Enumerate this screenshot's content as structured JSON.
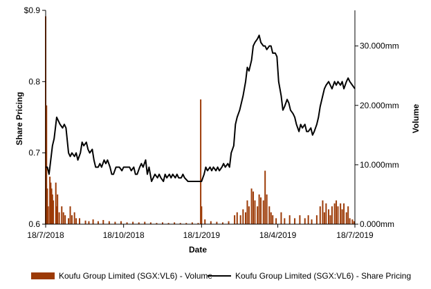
{
  "chart_data": {
    "type": "bar+line",
    "title": "",
    "xlabel": "Date",
    "ylabel_left": "Share Pricing",
    "ylabel_right": "Volume",
    "x_ticks": [
      "18/7/2018",
      "18/10/2018",
      "18/1/2019",
      "18/4/2019",
      "18/7/2019"
    ],
    "y_left_ticks": [
      "$0.9",
      "0.8",
      "0.7",
      "0.6"
    ],
    "y_left_tick_values": [
      0.9,
      0.8,
      0.7,
      0.6
    ],
    "ylim_left": [
      0.6,
      0.9
    ],
    "y_right_ticks": [
      "30.000mm",
      "20.000mm",
      "10.000mm",
      "0.000mm"
    ],
    "y_right_tick_values": [
      30,
      20,
      10,
      0
    ],
    "ylim_right": [
      0,
      36
    ],
    "grid": false,
    "legend_position": "bottom",
    "colors": {
      "volume": "#9c3a06",
      "price": "#000000"
    },
    "series": [
      {
        "name": "Koufu Group Limited (SGX:VL6) - Share Pricing",
        "type": "line",
        "axis": "left",
        "points": [
          [
            "2018-07-18",
            0.68
          ],
          [
            "2018-07-20",
            0.68
          ],
          [
            "2018-07-22",
            0.67
          ],
          [
            "2018-07-24",
            0.69
          ],
          [
            "2018-07-26",
            0.71
          ],
          [
            "2018-07-28",
            0.72
          ],
          [
            "2018-07-31",
            0.75
          ],
          [
            "2018-08-02",
            0.745
          ],
          [
            "2018-08-04",
            0.74
          ],
          [
            "2018-08-07",
            0.735
          ],
          [
            "2018-08-09",
            0.74
          ],
          [
            "2018-08-11",
            0.735
          ],
          [
            "2018-08-14",
            0.7
          ],
          [
            "2018-08-16",
            0.695
          ],
          [
            "2018-08-18",
            0.7
          ],
          [
            "2018-08-21",
            0.695
          ],
          [
            "2018-08-23",
            0.7
          ],
          [
            "2018-08-25",
            0.69
          ],
          [
            "2018-08-28",
            0.7
          ],
          [
            "2018-08-30",
            0.715
          ],
          [
            "2018-09-01",
            0.71
          ],
          [
            "2018-09-04",
            0.715
          ],
          [
            "2018-09-06",
            0.705
          ],
          [
            "2018-09-08",
            0.7
          ],
          [
            "2018-09-11",
            0.705
          ],
          [
            "2018-09-13",
            0.69
          ],
          [
            "2018-09-15",
            0.68
          ],
          [
            "2018-09-18",
            0.68
          ],
          [
            "2018-09-20",
            0.685
          ],
          [
            "2018-09-22",
            0.68
          ],
          [
            "2018-09-25",
            0.69
          ],
          [
            "2018-09-27",
            0.685
          ],
          [
            "2018-09-29",
            0.69
          ],
          [
            "2018-10-02",
            0.68
          ],
          [
            "2018-10-04",
            0.67
          ],
          [
            "2018-10-06",
            0.67
          ],
          [
            "2018-10-09",
            0.68
          ],
          [
            "2018-10-11",
            0.68
          ],
          [
            "2018-10-13",
            0.68
          ],
          [
            "2018-10-16",
            0.675
          ],
          [
            "2018-10-18",
            0.68
          ],
          [
            "2018-10-20",
            0.68
          ],
          [
            "2018-10-23",
            0.68
          ],
          [
            "2018-10-25",
            0.68
          ],
          [
            "2018-10-27",
            0.675
          ],
          [
            "2018-10-30",
            0.68
          ],
          [
            "2018-11-01",
            0.67
          ],
          [
            "2018-11-03",
            0.67
          ],
          [
            "2018-11-06",
            0.68
          ],
          [
            "2018-11-08",
            0.685
          ],
          [
            "2018-11-10",
            0.68
          ],
          [
            "2018-11-13",
            0.69
          ],
          [
            "2018-11-15",
            0.67
          ],
          [
            "2018-11-17",
            0.68
          ],
          [
            "2018-11-20",
            0.66
          ],
          [
            "2018-11-22",
            0.665
          ],
          [
            "2018-11-24",
            0.67
          ],
          [
            "2018-11-27",
            0.665
          ],
          [
            "2018-11-29",
            0.67
          ],
          [
            "2018-12-01",
            0.665
          ],
          [
            "2018-12-04",
            0.66
          ],
          [
            "2018-12-06",
            0.67
          ],
          [
            "2018-12-08",
            0.665
          ],
          [
            "2018-12-11",
            0.67
          ],
          [
            "2018-12-13",
            0.665
          ],
          [
            "2018-12-15",
            0.67
          ],
          [
            "2018-12-18",
            0.665
          ],
          [
            "2018-12-20",
            0.67
          ],
          [
            "2018-12-22",
            0.665
          ],
          [
            "2018-12-25",
            0.665
          ],
          [
            "2018-12-27",
            0.67
          ],
          [
            "2018-12-29",
            0.665
          ],
          [
            "2019-01-02",
            0.66
          ],
          [
            "2019-01-05",
            0.66
          ],
          [
            "2019-01-08",
            0.66
          ],
          [
            "2019-01-11",
            0.66
          ],
          [
            "2019-01-14",
            0.66
          ],
          [
            "2019-01-16",
            0.66
          ],
          [
            "2019-01-18",
            0.66
          ],
          [
            "2019-01-21",
            0.67
          ],
          [
            "2019-01-23",
            0.68
          ],
          [
            "2019-01-25",
            0.675
          ],
          [
            "2019-01-28",
            0.68
          ],
          [
            "2019-01-30",
            0.675
          ],
          [
            "2019-02-01",
            0.68
          ],
          [
            "2019-02-04",
            0.675
          ],
          [
            "2019-02-06",
            0.68
          ],
          [
            "2019-02-08",
            0.675
          ],
          [
            "2019-02-11",
            0.68
          ],
          [
            "2019-02-13",
            0.685
          ],
          [
            "2019-02-15",
            0.68
          ],
          [
            "2019-02-18",
            0.685
          ],
          [
            "2019-02-20",
            0.68
          ],
          [
            "2019-02-22",
            0.7
          ],
          [
            "2019-02-25",
            0.71
          ],
          [
            "2019-02-27",
            0.74
          ],
          [
            "2019-03-01",
            0.75
          ],
          [
            "2019-03-04",
            0.76
          ],
          [
            "2019-03-06",
            0.77
          ],
          [
            "2019-03-08",
            0.78
          ],
          [
            "2019-03-11",
            0.8
          ],
          [
            "2019-03-13",
            0.82
          ],
          [
            "2019-03-15",
            0.815
          ],
          [
            "2019-03-18",
            0.83
          ],
          [
            "2019-03-20",
            0.85
          ],
          [
            "2019-03-22",
            0.855
          ],
          [
            "2019-03-25",
            0.86
          ],
          [
            "2019-03-27",
            0.865
          ],
          [
            "2019-03-29",
            0.855
          ],
          [
            "2019-04-01",
            0.85
          ],
          [
            "2019-04-03",
            0.85
          ],
          [
            "2019-04-05",
            0.845
          ],
          [
            "2019-04-08",
            0.85
          ],
          [
            "2019-04-10",
            0.85
          ],
          [
            "2019-04-12",
            0.84
          ],
          [
            "2019-04-15",
            0.84
          ],
          [
            "2019-04-17",
            0.835
          ],
          [
            "2019-04-19",
            0.8
          ],
          [
            "2019-04-22",
            0.78
          ],
          [
            "2019-04-24",
            0.76
          ],
          [
            "2019-04-26",
            0.765
          ],
          [
            "2019-04-29",
            0.775
          ],
          [
            "2019-05-01",
            0.77
          ],
          [
            "2019-05-03",
            0.76
          ],
          [
            "2019-05-06",
            0.755
          ],
          [
            "2019-05-08",
            0.75
          ],
          [
            "2019-05-10",
            0.74
          ],
          [
            "2019-05-13",
            0.73
          ],
          [
            "2019-05-15",
            0.74
          ],
          [
            "2019-05-17",
            0.735
          ],
          [
            "2019-05-20",
            0.74
          ],
          [
            "2019-05-22",
            0.73
          ],
          [
            "2019-05-24",
            0.73
          ],
          [
            "2019-05-27",
            0.735
          ],
          [
            "2019-05-29",
            0.725
          ],
          [
            "2019-05-31",
            0.73
          ],
          [
            "2019-06-03",
            0.74
          ],
          [
            "2019-06-05",
            0.75
          ],
          [
            "2019-06-07",
            0.765
          ],
          [
            "2019-06-10",
            0.78
          ],
          [
            "2019-06-12",
            0.79
          ],
          [
            "2019-06-14",
            0.795
          ],
          [
            "2019-06-17",
            0.8
          ],
          [
            "2019-06-19",
            0.795
          ],
          [
            "2019-06-21",
            0.79
          ],
          [
            "2019-06-24",
            0.8
          ],
          [
            "2019-06-26",
            0.795
          ],
          [
            "2019-06-28",
            0.8
          ],
          [
            "2019-07-01",
            0.795
          ],
          [
            "2019-07-03",
            0.8
          ],
          [
            "2019-07-05",
            0.79
          ],
          [
            "2019-07-08",
            0.8
          ],
          [
            "2019-07-10",
            0.805
          ],
          [
            "2019-07-12",
            0.8
          ],
          [
            "2019-07-15",
            0.795
          ],
          [
            "2019-07-18",
            0.79
          ]
        ]
      },
      {
        "name": "Koufu Group Limited (SGX:VL6) - Volume",
        "type": "bar",
        "axis": "right",
        "points": [
          [
            "2018-07-18",
            35
          ],
          [
            "2018-07-19",
            20
          ],
          [
            "2018-07-20",
            6
          ],
          [
            "2018-07-21",
            3
          ],
          [
            "2018-07-23",
            8
          ],
          [
            "2018-07-24",
            7
          ],
          [
            "2018-07-25",
            6
          ],
          [
            "2018-07-26",
            5
          ],
          [
            "2018-07-27",
            4
          ],
          [
            "2018-07-30",
            7
          ],
          [
            "2018-07-31",
            3
          ],
          [
            "2018-08-01",
            5
          ],
          [
            "2018-08-03",
            2
          ],
          [
            "2018-08-06",
            3
          ],
          [
            "2018-08-08",
            2
          ],
          [
            "2018-08-10",
            1.5
          ],
          [
            "2018-08-14",
            1
          ],
          [
            "2018-08-16",
            3
          ],
          [
            "2018-08-18",
            1.5
          ],
          [
            "2018-08-21",
            2
          ],
          [
            "2018-08-23",
            1
          ],
          [
            "2018-08-27",
            1
          ],
          [
            "2018-09-03",
            0.6
          ],
          [
            "2018-09-07",
            0.5
          ],
          [
            "2018-09-12",
            0.8
          ],
          [
            "2018-09-18",
            0.5
          ],
          [
            "2018-09-24",
            0.7
          ],
          [
            "2018-10-01",
            0.5
          ],
          [
            "2018-10-08",
            0.4
          ],
          [
            "2018-10-15",
            0.5
          ],
          [
            "2018-10-22",
            0.3
          ],
          [
            "2018-10-29",
            0.4
          ],
          [
            "2018-11-05",
            0.3
          ],
          [
            "2018-11-12",
            0.4
          ],
          [
            "2018-11-19",
            0.3
          ],
          [
            "2018-11-26",
            0.2
          ],
          [
            "2018-12-03",
            0.3
          ],
          [
            "2018-12-10",
            0.2
          ],
          [
            "2018-12-17",
            0.3
          ],
          [
            "2018-12-24",
            0.2
          ],
          [
            "2018-12-31",
            0.2
          ],
          [
            "2019-01-07",
            0.3
          ],
          [
            "2019-01-14",
            0.2
          ],
          [
            "2019-01-17",
            21
          ],
          [
            "2019-01-18",
            3
          ],
          [
            "2019-01-22",
            0.8
          ],
          [
            "2019-01-29",
            0.5
          ],
          [
            "2019-02-05",
            0.4
          ],
          [
            "2019-02-12",
            0.3
          ],
          [
            "2019-02-19",
            0.5
          ],
          [
            "2019-02-26",
            1.5
          ],
          [
            "2019-03-01",
            2
          ],
          [
            "2019-03-05",
            1.5
          ],
          [
            "2019-03-08",
            2.5
          ],
          [
            "2019-03-11",
            2
          ],
          [
            "2019-03-13",
            4
          ],
          [
            "2019-03-15",
            3
          ],
          [
            "2019-03-18",
            6
          ],
          [
            "2019-03-20",
            5.5
          ],
          [
            "2019-03-22",
            4
          ],
          [
            "2019-03-25",
            3
          ],
          [
            "2019-03-27",
            5
          ],
          [
            "2019-03-29",
            4.5
          ],
          [
            "2019-04-01",
            4
          ],
          [
            "2019-04-03",
            9
          ],
          [
            "2019-04-05",
            5
          ],
          [
            "2019-04-08",
            3
          ],
          [
            "2019-04-10",
            2
          ],
          [
            "2019-04-12",
            1.5
          ],
          [
            "2019-04-16",
            1
          ],
          [
            "2019-04-22",
            2
          ],
          [
            "2019-04-26",
            1
          ],
          [
            "2019-05-02",
            1.5
          ],
          [
            "2019-05-08",
            1
          ],
          [
            "2019-05-14",
            1.5
          ],
          [
            "2019-05-20",
            1
          ],
          [
            "2019-05-24",
            1.5
          ],
          [
            "2019-05-28",
            0.8
          ],
          [
            "2019-06-03",
            1.5
          ],
          [
            "2019-06-07",
            3
          ],
          [
            "2019-06-10",
            4
          ],
          [
            "2019-06-12",
            2
          ],
          [
            "2019-06-14",
            3.5
          ],
          [
            "2019-06-17",
            2.5
          ],
          [
            "2019-06-19",
            1.5
          ],
          [
            "2019-06-21",
            3
          ],
          [
            "2019-06-24",
            3.5
          ],
          [
            "2019-06-26",
            4
          ],
          [
            "2019-06-28",
            3
          ],
          [
            "2019-07-01",
            3.5
          ],
          [
            "2019-07-03",
            2.5
          ],
          [
            "2019-07-05",
            3.5
          ],
          [
            "2019-07-08",
            2
          ],
          [
            "2019-07-10",
            3
          ],
          [
            "2019-07-12",
            1
          ],
          [
            "2019-07-15",
            0.8
          ],
          [
            "2019-07-17",
            0.5
          ]
        ]
      }
    ]
  }
}
